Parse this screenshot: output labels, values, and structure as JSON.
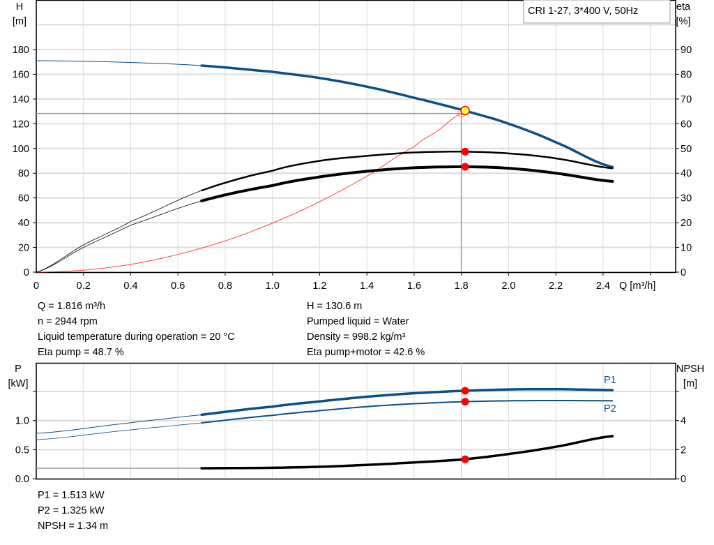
{
  "title_box": "CRI 1-27, 3*400 V, 50Hz",
  "colors": {
    "head": "#0b4f8a",
    "power": "#0b4f8a",
    "eta": "#000000",
    "system": "#ff4040",
    "marker": "#ff0000",
    "duty_point": "#ffff33",
    "grid": "#dcdcdc"
  },
  "chart_data": [
    {
      "type": "line",
      "xlabel": "Q [m³/h]",
      "ylabel_left": [
        "H",
        "[m]"
      ],
      "ylabel_right": [
        "eta",
        "[%]"
      ],
      "xlim": [
        0,
        2.7
      ],
      "ylim_left": [
        0,
        200
      ],
      "ylim_right": [
        0,
        100
      ],
      "grid": true,
      "x_ticks": [
        "0",
        "0.2",
        "0.4",
        "0.6",
        "0.8",
        "1.0",
        "1.2",
        "1.4",
        "1.6",
        "1.8",
        "2.0",
        "2.2",
        "2.4"
      ],
      "y_ticks_left": [
        "0",
        "20",
        "40",
        "60",
        "80",
        "100",
        "120",
        "140",
        "160",
        "180"
      ],
      "y_ticks_right": [
        "0",
        "10",
        "20",
        "30",
        "40",
        "50",
        "60",
        "70",
        "80",
        "90"
      ],
      "series": [
        {
          "key": "H",
          "axis": "left",
          "x": [
            0,
            0.2,
            0.4,
            0.7,
            1.0,
            1.2,
            1.4,
            1.6,
            1.816,
            2.0,
            2.2,
            2.44
          ],
          "y": [
            171,
            170.5,
            169.5,
            167,
            162,
            157,
            150,
            141,
            130.6,
            120,
            105,
            85
          ],
          "thin_until": 0.7
        },
        {
          "key": "eta_pump",
          "axis": "right",
          "x": [
            0,
            0.2,
            0.4,
            0.7,
            1.0,
            1.2,
            1.4,
            1.6,
            1.816,
            2.0,
            2.2,
            2.44
          ],
          "y": [
            0,
            11,
            20.5,
            33,
            41,
            45,
            47,
            48.4,
            48.7,
            48,
            46,
            42
          ],
          "thin_until": 0.7
        },
        {
          "key": "eta_total",
          "axis": "right",
          "x": [
            0,
            0.2,
            0.4,
            0.7,
            1.0,
            1.2,
            1.4,
            1.6,
            1.816,
            2.0,
            2.2,
            2.44
          ],
          "y": [
            0,
            10,
            19,
            28.8,
            35,
            38.5,
            40.8,
            42.2,
            42.6,
            42,
            40,
            36.7
          ],
          "thin_until": 0.7
        },
        {
          "key": "system",
          "axis": "left",
          "x": [
            0,
            0.2,
            0.4,
            0.6,
            0.8,
            1.0,
            1.2,
            1.4,
            1.6,
            1.7,
            1.8
          ],
          "y": [
            0,
            1.6,
            6.3,
            14.3,
            25.3,
            39.6,
            57,
            77.6,
            101.4,
            114.4,
            128.3
          ]
        }
      ],
      "duty_point": {
        "Q": 1.816,
        "H": 130.6,
        "eta_pump": 48.7,
        "eta_total": 42.6
      },
      "reference_H": 128.3
    },
    {
      "type": "line",
      "ylabel_left": [
        "P",
        "[kW]"
      ],
      "ylabel_right": [
        "NPSH",
        "[m]"
      ],
      "xlim": [
        0,
        2.7
      ],
      "ylim_left": [
        0,
        2.0
      ],
      "ylim_right": [
        0,
        8
      ],
      "grid": true,
      "y_ticks_left": [
        "0.0",
        "0.5",
        "1.0"
      ],
      "y_ticks_right": [
        "0",
        "2",
        "4"
      ],
      "series": [
        {
          "key": "P1",
          "name": "P1",
          "axis": "left",
          "x": [
            0,
            0.35,
            0.7,
            1.0,
            1.2,
            1.4,
            1.6,
            1.816,
            2.0,
            2.2,
            2.44
          ],
          "y": [
            0.78,
            0.94,
            1.1,
            1.24,
            1.33,
            1.41,
            1.47,
            1.513,
            1.535,
            1.54,
            1.525
          ],
          "thin_until": 0.7
        },
        {
          "key": "P2",
          "name": "P2",
          "axis": "left",
          "x": [
            0,
            0.35,
            0.7,
            1.0,
            1.2,
            1.4,
            1.6,
            1.816,
            2.0,
            2.2,
            2.44
          ],
          "y": [
            0.67,
            0.82,
            0.96,
            1.09,
            1.17,
            1.24,
            1.29,
            1.325,
            1.34,
            1.345,
            1.34
          ],
          "thin_until": 0.7
        },
        {
          "key": "NPSH",
          "axis": "right",
          "x": [
            0,
            0.7,
            1.0,
            1.2,
            1.4,
            1.6,
            1.816,
            2.0,
            2.2,
            2.44
          ],
          "y": [
            0.72,
            0.72,
            0.75,
            0.82,
            0.95,
            1.12,
            1.34,
            1.7,
            2.2,
            2.93
          ],
          "thin_until": 0.7
        }
      ],
      "duty_point": {
        "P1": 1.513,
        "P2": 1.325,
        "NPSH": 1.34
      }
    }
  ],
  "info": {
    "left": [
      "Q = 1.816 m³/h",
      "n = 2944 rpm",
      "Liquid temperature during operation = 20 °C",
      "Eta pump = 48.7 %"
    ],
    "right": [
      "H = 130.6 m",
      "Pumped liquid = Water",
      "Density = 998.2 kg/m³",
      "Eta pump+motor = 42.6 %"
    ],
    "bottom": [
      "P1 = 1.513 kW",
      "P2 = 1.325 kW",
      "NPSH = 1.34 m"
    ]
  }
}
